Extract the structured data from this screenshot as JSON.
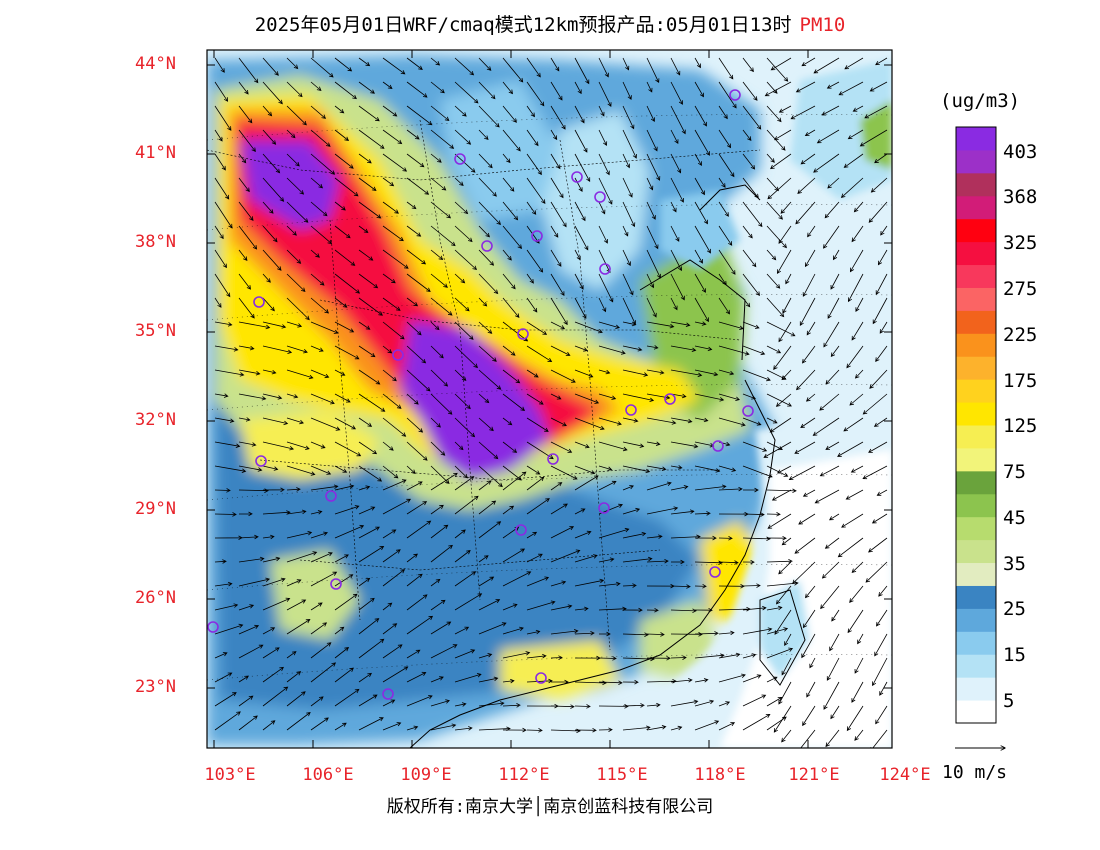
{
  "title": {
    "main": "2025年05月01日WRF/cmaq模式12km预报产品:05月01日13时",
    "variable": "PM10"
  },
  "axes": {
    "lat_labels": [
      "44°N",
      "41°N",
      "38°N",
      "35°N",
      "32°N",
      "29°N",
      "26°N",
      "23°N"
    ],
    "lat_values": [
      44,
      41,
      38,
      35,
      32,
      29,
      26,
      23
    ],
    "lon_labels": [
      "103°E",
      "106°E",
      "109°E",
      "112°E",
      "115°E",
      "118°E",
      "121°E",
      "124°E"
    ],
    "lon_values": [
      103,
      106,
      109,
      112,
      115,
      118,
      121,
      124
    ],
    "lon_range": [
      102.9,
      124
    ],
    "lat_range": [
      20.9,
      44.5
    ]
  },
  "colorbar": {
    "unit": "(ug/m3)",
    "labels": [
      "403",
      "368",
      "325",
      "275",
      "225",
      "175",
      "125",
      "75",
      "45",
      "35",
      "25",
      "15",
      "5"
    ],
    "colors": [
      "#ffffff",
      "#dff2fb",
      "#b4e2f5",
      "#8acbee",
      "#5ea8dc",
      "#3a84c2",
      "#e2ecc0",
      "#c9e28c",
      "#b7dc6e",
      "#8cc44e",
      "#6aa33c",
      "#f2f47a",
      "#f6ee52",
      "#ffe600",
      "#ffd21e",
      "#fdb22c",
      "#fa921c",
      "#f2631c",
      "#fb6464",
      "#f8385c",
      "#f50f40",
      "#ff0010",
      "#d21c78",
      "#b0305c",
      "#9c30c8",
      "#8a2be2"
    ]
  },
  "wind_reference": {
    "label": "10 m/s"
  },
  "colors": {
    "label_red": "#e8232a",
    "ocean": "#dff2fb",
    "station_ring": "#8a2be2"
  },
  "copyright": "版权所有:南京大学│南京创蓝科技有限公司"
}
